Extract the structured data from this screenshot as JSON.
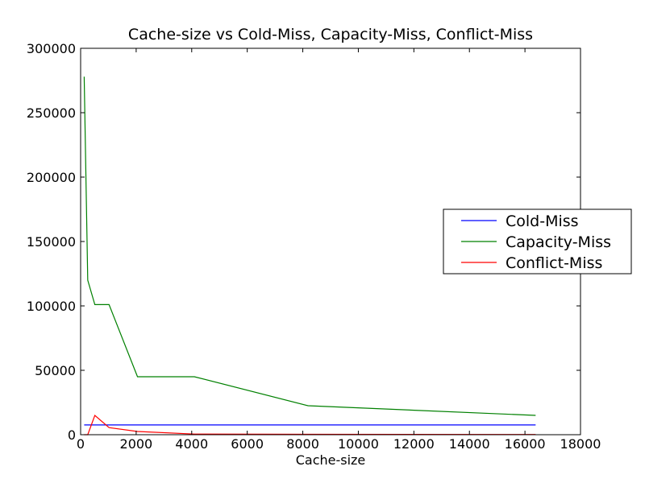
{
  "chart_data": {
    "type": "line",
    "title": "Cache-size vs Cold-Miss, Capacity-Miss, Conflict-Miss",
    "xlabel": "Cache-size",
    "ylabel": "",
    "xlim": [
      0,
      18000
    ],
    "ylim": [
      0,
      300000
    ],
    "xticks": [
      0,
      2000,
      4000,
      6000,
      8000,
      10000,
      12000,
      14000,
      16000,
      18000
    ],
    "yticks": [
      0,
      50000,
      100000,
      150000,
      200000,
      250000,
      300000
    ],
    "x": [
      128,
      256,
      512,
      1024,
      2048,
      4096,
      8192,
      16384
    ],
    "series": [
      {
        "name": "Cold-Miss",
        "color": "#0000ff",
        "values": [
          7600,
          7600,
          7600,
          7600,
          7600,
          7600,
          7600,
          7600
        ]
      },
      {
        "name": "Capacity-Miss",
        "color": "#008000",
        "values": [
          278000,
          120000,
          101000,
          101000,
          45000,
          45000,
          22500,
          15000
        ]
      },
      {
        "name": "Conflict-Miss",
        "color": "#ff0000",
        "values": [
          0,
          0,
          15000,
          5500,
          2500,
          500,
          300,
          200
        ]
      }
    ],
    "legend_position": "right",
    "grid": false
  }
}
